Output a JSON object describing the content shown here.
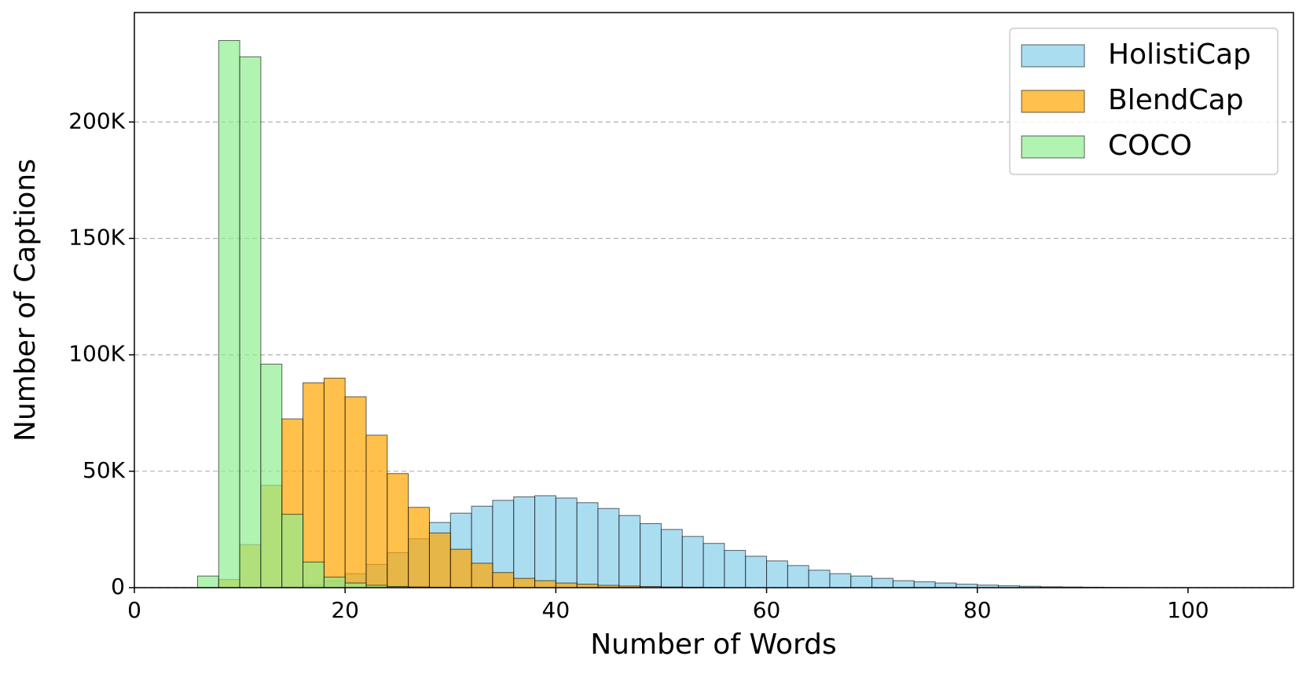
{
  "chart_data": {
    "type": "histogram",
    "xlabel": "Number of Words",
    "ylabel": "Number of Captions",
    "bins": [
      6,
      8,
      10,
      12,
      14,
      16,
      18,
      20,
      22,
      24,
      26,
      28,
      30,
      32,
      34,
      36,
      38,
      40,
      42,
      44,
      46,
      48,
      50,
      52,
      54,
      56,
      58,
      60,
      62,
      64,
      66,
      68,
      70,
      72,
      74,
      76,
      78,
      80,
      82,
      84,
      86,
      88,
      90,
      92,
      94,
      96,
      98,
      100
    ],
    "series": [
      {
        "name": "HolistiCap",
        "color": "#87ceeb",
        "values": [
          0,
          0,
          0,
          0,
          300,
          1000,
          3000,
          6000,
          10000,
          15000,
          21000,
          28000,
          32000,
          35000,
          37500,
          39000,
          39500,
          38500,
          36500,
          34000,
          31000,
          27500,
          25000,
          22000,
          19000,
          16000,
          13500,
          11500,
          9500,
          7500,
          6000,
          5000,
          4000,
          3000,
          2500,
          2000,
          1500,
          1100,
          800,
          600,
          400,
          300,
          200,
          100,
          50,
          0,
          0
        ]
      },
      {
        "name": "BlendCap",
        "color": "#ffa500",
        "values": [
          0,
          3500,
          18500,
          44000,
          72500,
          88000,
          90000,
          82000,
          65500,
          49000,
          34500,
          23500,
          16500,
          10500,
          6500,
          4000,
          3000,
          2000,
          1500,
          1000,
          700,
          500,
          300,
          200,
          100,
          0,
          0,
          0,
          0,
          0,
          0,
          0,
          0,
          0,
          0,
          0,
          0,
          0,
          0,
          0,
          0,
          0,
          0,
          0,
          0,
          0,
          0
        ]
      },
      {
        "name": "COCO",
        "color": "#90ee90",
        "values": [
          5000,
          235000,
          228000,
          96000,
          31500,
          11000,
          4500,
          2000,
          1000,
          500,
          300,
          200,
          100,
          50,
          0,
          0,
          0,
          0,
          0,
          0,
          0,
          0,
          0,
          0,
          0,
          0,
          0,
          0,
          0,
          0,
          0,
          0,
          0,
          0,
          0,
          0,
          0,
          0,
          0,
          0,
          0,
          0,
          0,
          0,
          0,
          0,
          0
        ]
      }
    ],
    "xlim": [
      0,
      110
    ],
    "xticks": [
      0,
      20,
      40,
      60,
      80,
      100
    ],
    "ylim": [
      0,
      247000
    ],
    "yticks": [
      0,
      {
        "value": 50000,
        "label": "50K"
      },
      {
        "value": 100000,
        "label": "100K"
      },
      {
        "value": 150000,
        "label": "150K"
      },
      {
        "value": 200000,
        "label": "200K"
      }
    ],
    "grid": "y",
    "legend": "upper right"
  }
}
